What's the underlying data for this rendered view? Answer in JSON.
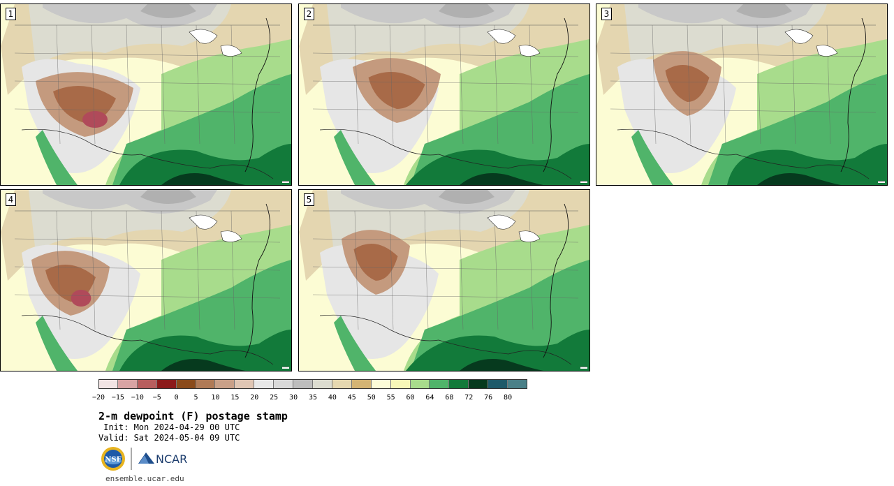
{
  "panels": [
    {
      "number": "1"
    },
    {
      "number": "2"
    },
    {
      "number": "3"
    },
    {
      "number": "4"
    },
    {
      "number": "5"
    }
  ],
  "colorbar": {
    "colors": [
      "#f2e4e4",
      "#d9a4a4",
      "#b85e5e",
      "#8c1a1a",
      "#8a4a1a",
      "#b07a56",
      "#c9a088",
      "#e0c6b4",
      "#e8e8e8",
      "#d9d9d9",
      "#bdbdbd",
      "#dcdcd0",
      "#e6d8b0",
      "#d4b474",
      "#fcfcd8",
      "#f8f8b8",
      "#a8dc8c",
      "#50b46a",
      "#127a3a",
      "#063a1e",
      "#1e5a6a",
      "#4a8088"
    ],
    "labels": [
      "−20",
      "−15",
      "−10",
      "−5",
      "0",
      "5",
      "10",
      "15",
      "20",
      "25",
      "30",
      "35",
      "40",
      "45",
      "50",
      "55",
      "60",
      "64",
      "68",
      "72",
      "76",
      "80"
    ]
  },
  "title": "2-m dewpoint (F) postage stamp",
  "init": " Init: Mon 2024-04-29 00 UTC",
  "valid": "Valid: Sat 2024-05-04 09 UTC",
  "logos": {
    "nsf": "NSF",
    "ncar": "NCAR"
  },
  "website": "ensemble.ucar.edu"
}
